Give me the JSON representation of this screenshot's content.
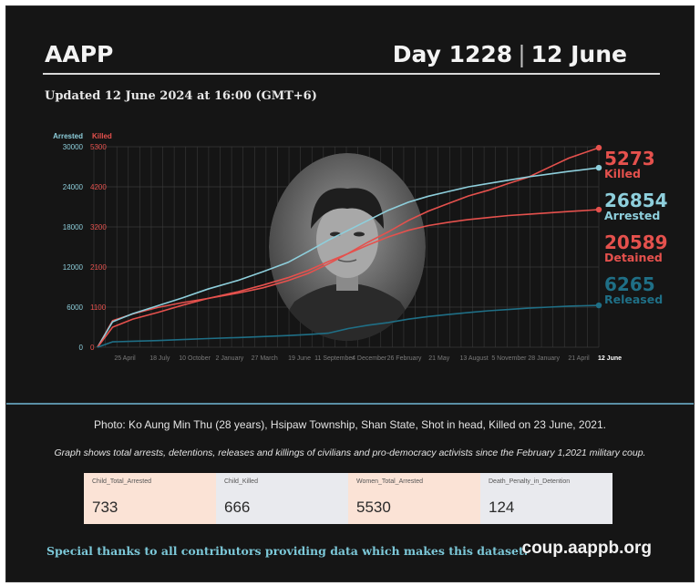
{
  "header": {
    "brand": "AAPP",
    "day_label": "Day 1228",
    "separator": "|",
    "date_label": "12 June",
    "updated": "Updated 12 June 2024 at 16:00 (GMT+6)"
  },
  "chart_data": {
    "type": "line",
    "axis_titles": {
      "left": "Arrested",
      "right": "Killed"
    },
    "left_ticks": [
      "30000",
      "24000",
      "18000",
      "12000",
      "6000",
      "0"
    ],
    "right_ticks": [
      "5300",
      "4200",
      "3200",
      "2100",
      "1100",
      "0"
    ],
    "x_ticks": [
      "25 April",
      "18 July",
      "10 October",
      "2 January",
      "27 March",
      "19 June",
      "11 September",
      "4 December",
      "26 February",
      "21 May",
      "13 August",
      "5 November",
      "28 January",
      "21 April",
      "12 June"
    ],
    "x_ticks_display": [
      "25 April",
      "18 July",
      "10 October",
      "2 January",
      "27 March",
      "19 June",
      "11 September",
      "4 December",
      "26 February",
      "21 May",
      "13 August",
      "5 November",
      "28 January",
      "21 April"
    ],
    "x_end_label": "12 June",
    "ylim_left": [
      0,
      30000
    ],
    "ylim_right": [
      0,
      5300
    ],
    "grid": true,
    "series": [
      {
        "name": "Killed",
        "axis": "right",
        "color": "#e5514d",
        "latest": "5273",
        "points": [
          [
            0,
            0
          ],
          [
            0.03,
            700
          ],
          [
            0.07,
            880
          ],
          [
            0.12,
            1050
          ],
          [
            0.17,
            1180
          ],
          [
            0.22,
            1290
          ],
          [
            0.28,
            1430
          ],
          [
            0.33,
            1570
          ],
          [
            0.38,
            1760
          ],
          [
            0.42,
            1950
          ],
          [
            0.46,
            2200
          ],
          [
            0.5,
            2480
          ],
          [
            0.54,
            2780
          ],
          [
            0.58,
            3050
          ],
          [
            0.62,
            3350
          ],
          [
            0.66,
            3600
          ],
          [
            0.7,
            3800
          ],
          [
            0.74,
            4000
          ],
          [
            0.78,
            4150
          ],
          [
            0.82,
            4330
          ],
          [
            0.86,
            4500
          ],
          [
            0.9,
            4750
          ],
          [
            0.94,
            5000
          ],
          [
            1,
            5273
          ]
        ]
      },
      {
        "name": "Arrested",
        "axis": "left",
        "color": "#8ecfdc",
        "latest": "26854",
        "points": [
          [
            0,
            0
          ],
          [
            0.03,
            3800
          ],
          [
            0.07,
            5000
          ],
          [
            0.12,
            6200
          ],
          [
            0.17,
            7400
          ],
          [
            0.22,
            8700
          ],
          [
            0.28,
            10000
          ],
          [
            0.33,
            11300
          ],
          [
            0.38,
            12700
          ],
          [
            0.42,
            14300
          ],
          [
            0.46,
            16000
          ],
          [
            0.5,
            17500
          ],
          [
            0.54,
            19000
          ],
          [
            0.58,
            20500
          ],
          [
            0.62,
            21700
          ],
          [
            0.66,
            22600
          ],
          [
            0.7,
            23300
          ],
          [
            0.74,
            24000
          ],
          [
            0.78,
            24500
          ],
          [
            0.82,
            25000
          ],
          [
            0.86,
            25500
          ],
          [
            0.9,
            25900
          ],
          [
            0.94,
            26300
          ],
          [
            1,
            26854
          ]
        ]
      },
      {
        "name": "Detained",
        "axis": "left",
        "color": "#e5514d",
        "latest": "20589",
        "points": [
          [
            0,
            0
          ],
          [
            0.03,
            3000
          ],
          [
            0.07,
            4200
          ],
          [
            0.12,
            5200
          ],
          [
            0.17,
            6300
          ],
          [
            0.22,
            7300
          ],
          [
            0.28,
            8300
          ],
          [
            0.33,
            9300
          ],
          [
            0.38,
            10400
          ],
          [
            0.42,
            11500
          ],
          [
            0.46,
            12800
          ],
          [
            0.5,
            14000
          ],
          [
            0.54,
            15300
          ],
          [
            0.58,
            16500
          ],
          [
            0.62,
            17500
          ],
          [
            0.66,
            18200
          ],
          [
            0.7,
            18700
          ],
          [
            0.74,
            19100
          ],
          [
            0.78,
            19400
          ],
          [
            0.82,
            19700
          ],
          [
            0.86,
            19900
          ],
          [
            0.9,
            20100
          ],
          [
            0.94,
            20300
          ],
          [
            1,
            20589
          ]
        ]
      },
      {
        "name": "Released",
        "axis": "left",
        "color": "#1f6f86",
        "latest": "6265",
        "points": [
          [
            0,
            0
          ],
          [
            0.03,
            800
          ],
          [
            0.07,
            900
          ],
          [
            0.12,
            1000
          ],
          [
            0.17,
            1150
          ],
          [
            0.22,
            1300
          ],
          [
            0.28,
            1450
          ],
          [
            0.33,
            1600
          ],
          [
            0.38,
            1750
          ],
          [
            0.42,
            1900
          ],
          [
            0.46,
            2100
          ],
          [
            0.5,
            2800
          ],
          [
            0.54,
            3300
          ],
          [
            0.58,
            3700
          ],
          [
            0.62,
            4200
          ],
          [
            0.66,
            4600
          ],
          [
            0.7,
            4900
          ],
          [
            0.74,
            5200
          ],
          [
            0.78,
            5450
          ],
          [
            0.82,
            5650
          ],
          [
            0.86,
            5850
          ],
          [
            0.9,
            6000
          ],
          [
            0.94,
            6150
          ],
          [
            1,
            6265
          ]
        ]
      }
    ]
  },
  "photo": {
    "icon": "portrait-photo",
    "caption": "Photo: Ko Aung Min Thu (28 years), Hsipaw Township, Shan State, Shot in head, Killed on 23 June, 2021."
  },
  "graph_note": "Graph shows total arrests, detentions, releases and killings of civilians and pro-democracy activists since the February 1,2021 military coup.",
  "stats": [
    {
      "label": "Child_Total_Arrested",
      "value": "733",
      "bg": "#fbe3d6"
    },
    {
      "label": "Child_Killed",
      "value": "666",
      "bg": "#e9eaee"
    },
    {
      "label": "Women_Total_Arrested",
      "value": "5530",
      "bg": "#fbe3d6"
    },
    {
      "label": "Death_Penalty_in_Detention",
      "value": "124",
      "bg": "#e9eaee"
    }
  ],
  "footer": {
    "thanks": "Special thanks to all contributors providing data which makes this dataset.",
    "site": "coup.aappb.org"
  }
}
